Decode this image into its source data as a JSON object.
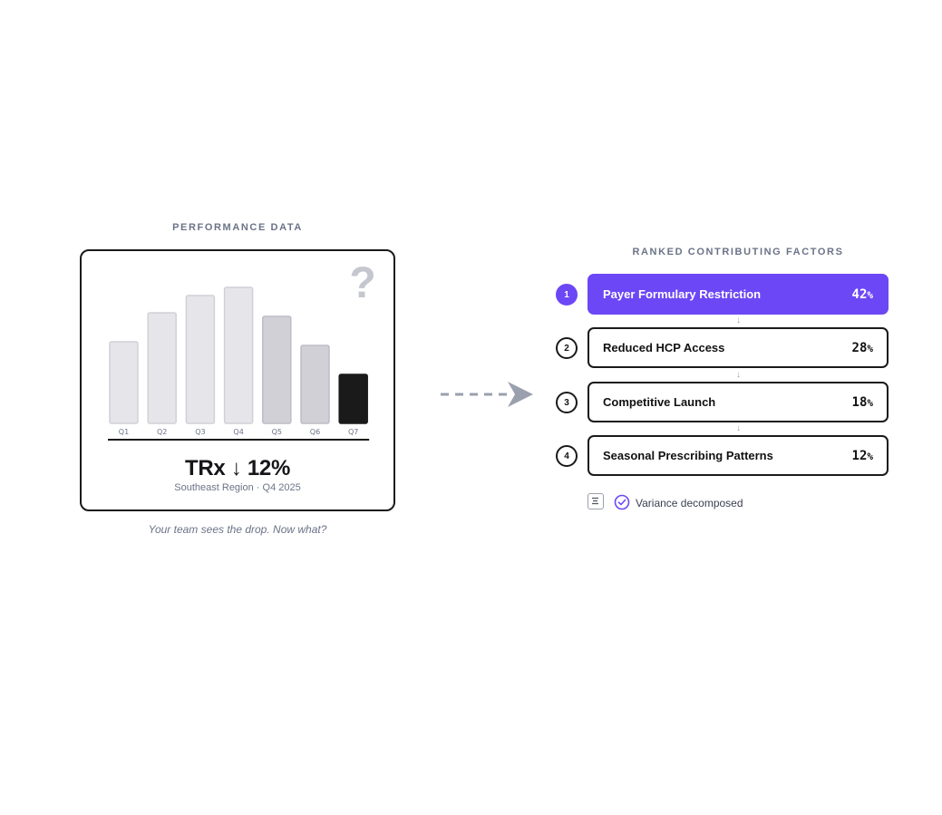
{
  "left_panel": {
    "section_label": "PERFORMANCE DATA",
    "question_mark": "?",
    "metric": "TRx ↓ 12%",
    "subtitle": "Southeast Region · Q4 2025",
    "caption": "Your team sees the drop. Now what?"
  },
  "chart_data": {
    "type": "bar",
    "categories": [
      "Q1",
      "Q2",
      "Q3",
      "Q4",
      "Q5",
      "Q6",
      "Q7"
    ],
    "values": [
      90,
      122,
      141,
      150,
      118,
      86,
      54
    ],
    "title": "",
    "xlabel": "",
    "ylabel": "",
    "ylim": [
      0,
      170
    ],
    "grid": false,
    "colors": {
      "past": "#e6e5ea",
      "past_stroke": "#d1d0d8",
      "recent": "#d1d0d7",
      "recent_stroke": "#bdbcc6",
      "current": "#1a1a1a"
    }
  },
  "right_panel": {
    "section_label": "RANKED CONTRIBUTING FACTORS",
    "factors": [
      {
        "rank": "1",
        "name": "Payer Formulary Restriction",
        "pct": "42",
        "unit": "%"
      },
      {
        "rank": "2",
        "name": "Reduced HCP Access",
        "pct": "28",
        "unit": "%"
      },
      {
        "rank": "3",
        "name": "Competitive Launch",
        "pct": "18",
        "unit": "%"
      },
      {
        "rank": "4",
        "name": "Seasonal Prescribing Patterns",
        "pct": "12",
        "unit": "%"
      }
    ],
    "connector_glyph": "↓",
    "status_text": "Variance decomposed",
    "icons": {
      "list": "list-icon",
      "check": "check-circle-icon"
    }
  },
  "colors": {
    "accent": "#6c47f5",
    "muted_text": "#6b7387",
    "arrow": "#9aa0ae"
  }
}
